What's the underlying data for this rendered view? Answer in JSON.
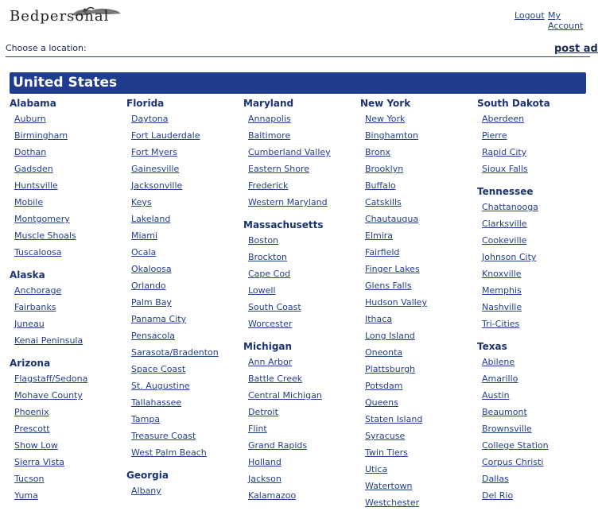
{
  "header": {
    "logo": "Bedpersonal",
    "logout": "Logout",
    "my_account": "My Account"
  },
  "toolbar": {
    "prompt": "Choose a location:",
    "post_ad": "post ad"
  },
  "country": {
    "name": "United States",
    "columns": [
      [
        {
          "name": "Alabama",
          "cities": [
            "Auburn",
            "Birmingham",
            "Dothan",
            "Gadsden",
            "Huntsville",
            "Mobile",
            "Montgomery",
            "Muscle Shoals",
            "Tuscaloosa"
          ]
        },
        {
          "name": "Alaska",
          "cities": [
            "Anchorage",
            "Fairbanks",
            "Juneau",
            "Kenai Peninsula"
          ]
        },
        {
          "name": "Arizona",
          "cities": [
            "Flagstaff/Sedona",
            "Mohave County",
            "Phoenix",
            "Prescott",
            "Show Low",
            "Sierra Vista",
            "Tucson",
            "Yuma"
          ]
        }
      ],
      [
        {
          "name": "Florida",
          "cities": [
            "Daytona",
            "Fort Lauderdale",
            "Fort Myers",
            "Gainesville",
            "Jacksonville",
            "Keys",
            "Lakeland",
            "Miami",
            "Ocala",
            "Okaloosa",
            "Orlando",
            "Palm Bay",
            "Panama City",
            "Pensacola",
            "Sarasota/Bradenton",
            "Space Coast",
            "St. Augustine",
            "Tallahassee",
            "Tampa",
            "Treasure Coast",
            "West Palm Beach"
          ]
        },
        {
          "name": "Georgia",
          "cities": [
            "Albany"
          ]
        }
      ],
      [
        {
          "name": "Maryland",
          "cities": [
            "Annapolis",
            "Baltimore",
            "Cumberland Valley",
            "Eastern Shore",
            "Frederick",
            "Western Maryland"
          ]
        },
        {
          "name": "Massachusetts",
          "cities": [
            "Boston",
            "Brockton",
            "Cape Cod",
            "Lowell",
            "South Coast",
            "Worcester"
          ]
        },
        {
          "name": "Michigan",
          "cities": [
            "Ann Arbor",
            "Battle Creek",
            "Central Michigan",
            "Detroit",
            "Flint",
            "Grand Rapids",
            "Holland",
            "Jackson",
            "Kalamazoo"
          ]
        }
      ],
      [
        {
          "name": "New York",
          "cities": [
            "New York",
            "Binghamton",
            "Bronx",
            "Brooklyn",
            "Buffalo",
            "Catskills",
            "Chautauqua",
            "Elmira",
            "Fairfield",
            "Finger Lakes",
            "Glens Falls",
            "Hudson Valley",
            "Ithaca",
            "Long Island",
            "Oneonta",
            "Plattsburgh",
            "Potsdam",
            "Queens",
            "Staten Island",
            "Syracuse",
            "Twin Tiers",
            "Utica",
            "Watertown",
            "Westchester"
          ]
        }
      ],
      [
        {
          "name": "South Dakota",
          "cities": [
            "Aberdeen",
            "Pierre",
            "Rapid City",
            "Sioux Falls"
          ]
        },
        {
          "name": "Tennessee",
          "cities": [
            "Chattanooga",
            "Clarksville",
            "Cookeville",
            "Johnson City",
            "Knoxville",
            "Memphis",
            "Nashville",
            "Tri-Cities"
          ]
        },
        {
          "name": "Texas",
          "cities": [
            "Abilene",
            "Amarillo",
            "Austin",
            "Beaumont",
            "Brownsville",
            "College Station",
            "Corpus Christi",
            "Dallas",
            "Del Rio"
          ]
        }
      ]
    ]
  }
}
